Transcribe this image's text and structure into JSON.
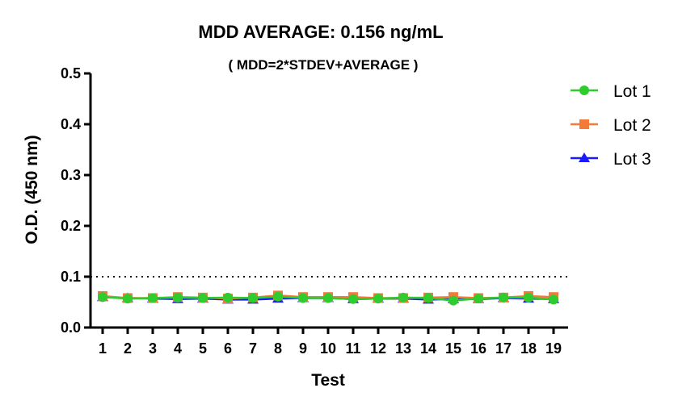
{
  "chart_data": {
    "type": "line",
    "title": "MDD AVERAGE:  0.156 ng/mL",
    "subtitle": "( MDD=2*STDEV+AVERAGE )",
    "xlabel": "Test",
    "ylabel": "O.D. (450 nm)",
    "x": [
      1,
      2,
      3,
      4,
      5,
      6,
      7,
      8,
      9,
      10,
      11,
      12,
      13,
      14,
      15,
      16,
      17,
      18,
      19
    ],
    "x_ticks": [
      "1",
      "2",
      "3",
      "4",
      "5",
      "6",
      "7",
      "8",
      "9",
      "10",
      "11",
      "12",
      "13",
      "14",
      "15",
      "16",
      "17",
      "18",
      "19"
    ],
    "ylim": [
      0,
      0.5
    ],
    "y_ticks": [
      "0.0",
      "0.1",
      "0.2",
      "0.3",
      "0.4",
      "0.5"
    ],
    "grid": false,
    "reference_line": {
      "y": 0.1,
      "style": "dotted"
    },
    "legend_position": "top-right",
    "series": [
      {
        "name": "Lot 3",
        "color": "#1a1aff",
        "marker": "triangle",
        "values": [
          0.06,
          0.058,
          0.057,
          0.056,
          0.057,
          0.055,
          0.055,
          0.057,
          0.058,
          0.058,
          0.056,
          0.057,
          0.057,
          0.055,
          0.056,
          0.056,
          0.058,
          0.057,
          0.056
        ]
      },
      {
        "name": "Lot 2",
        "color": "#f47a3a",
        "marker": "square",
        "values": [
          0.062,
          0.058,
          0.058,
          0.06,
          0.059,
          0.057,
          0.059,
          0.063,
          0.06,
          0.06,
          0.06,
          0.058,
          0.058,
          0.059,
          0.06,
          0.058,
          0.059,
          0.062,
          0.06
        ]
      },
      {
        "name": "Lot 1",
        "color": "#2ecc2e",
        "marker": "circle",
        "values": [
          0.06,
          0.057,
          0.058,
          0.059,
          0.058,
          0.059,
          0.058,
          0.061,
          0.058,
          0.058,
          0.056,
          0.057,
          0.059,
          0.058,
          0.053,
          0.057,
          0.059,
          0.059,
          0.055
        ]
      }
    ],
    "legend_order": [
      "Lot 1",
      "Lot 2",
      "Lot 3"
    ]
  }
}
